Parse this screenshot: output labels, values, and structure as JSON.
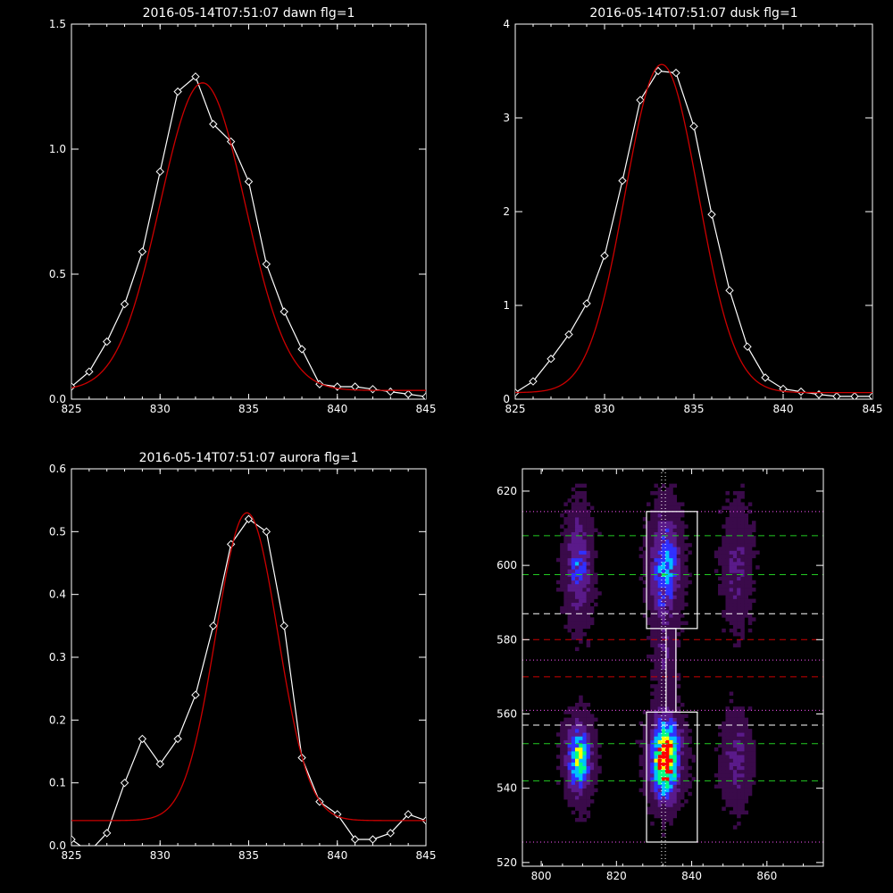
{
  "chart_data": [
    {
      "type": "line",
      "title": "2016-05-14T07:51:07 dawn flg=1",
      "xlim": [
        825,
        845
      ],
      "ylim": [
        0,
        1.5
      ],
      "x_ticks": [
        "825",
        "830",
        "835",
        "840",
        "845"
      ],
      "y_ticks": [
        "0.0",
        "0.5",
        "1.0",
        "1.5"
      ],
      "series": [
        {
          "kind": "observed",
          "color": "#ffffff",
          "x": [
            825,
            826,
            827,
            828,
            829,
            830,
            831,
            832,
            833,
            834,
            835,
            836,
            837,
            838,
            839,
            840,
            841,
            842,
            843,
            844,
            845
          ],
          "y": [
            0.05,
            0.11,
            0.23,
            0.38,
            0.59,
            0.91,
            1.23,
            1.29,
            1.1,
            1.03,
            0.87,
            0.54,
            0.35,
            0.2,
            0.06,
            0.05,
            0.05,
            0.04,
            0.03,
            0.02,
            0.01
          ]
        },
        {
          "kind": "fit",
          "color": "#cc0000",
          "fit": {
            "amp": 1.23,
            "mu": 832.4,
            "sigma": 2.4,
            "base": 0.035
          }
        }
      ]
    },
    {
      "type": "line",
      "title": "2016-05-14T07:51:07 dusk flg=1",
      "xlim": [
        825,
        845
      ],
      "ylim": [
        0,
        4
      ],
      "x_ticks": [
        "825",
        "830",
        "835",
        "840",
        "845"
      ],
      "y_ticks": [
        "0",
        "1",
        "2",
        "3",
        "4"
      ],
      "series": [
        {
          "kind": "observed",
          "color": "#ffffff",
          "x": [
            825,
            826,
            827,
            828,
            829,
            830,
            831,
            832,
            833,
            834,
            835,
            836,
            837,
            838,
            839,
            840,
            841,
            842,
            843,
            844,
            845
          ],
          "y": [
            0.07,
            0.19,
            0.43,
            0.69,
            1.02,
            1.53,
            2.33,
            3.19,
            3.5,
            3.48,
            2.91,
            1.97,
            1.16,
            0.56,
            0.23,
            0.11,
            0.08,
            0.05,
            0.03,
            0.03,
            0.03
          ]
        },
        {
          "kind": "fit",
          "color": "#cc0000",
          "fit": {
            "amp": 3.5,
            "mu": 833.2,
            "sigma": 2.05,
            "base": 0.07
          }
        }
      ]
    },
    {
      "type": "line",
      "title": "2016-05-14T07:51:07 aurora flg=1",
      "xlim": [
        825,
        845
      ],
      "ylim": [
        0,
        0.6
      ],
      "x_ticks": [
        "825",
        "830",
        "835",
        "840",
        "845"
      ],
      "y_ticks": [
        "0.0",
        "0.1",
        "0.2",
        "0.3",
        "0.4",
        "0.5",
        "0.6"
      ],
      "series": [
        {
          "kind": "observed",
          "color": "#ffffff",
          "x": [
            825,
            826,
            827,
            828,
            829,
            830,
            831,
            832,
            833,
            834,
            835,
            836,
            837,
            838,
            839,
            840,
            841,
            842,
            843,
            844,
            845
          ],
          "y": [
            0.01,
            -0.01,
            0.02,
            0.1,
            0.17,
            0.13,
            0.17,
            0.24,
            0.35,
            0.48,
            0.52,
            0.5,
            0.35,
            0.14,
            0.07,
            0.05,
            0.01,
            0.01,
            0.02,
            0.05,
            0.04
          ]
        },
        {
          "kind": "fit",
          "color": "#cc0000",
          "fit": {
            "amp": 0.49,
            "mu": 834.9,
            "sigma": 1.75,
            "base": 0.04
          }
        }
      ]
    },
    {
      "type": "heatmap",
      "title": "",
      "xlim": [
        795,
        875
      ],
      "ylim": [
        519,
        626
      ],
      "x_ticks": [
        "800",
        "820",
        "840",
        "860"
      ],
      "y_ticks": [
        "520",
        "540",
        "560",
        "580",
        "600",
        "620"
      ],
      "colormap": [
        "#000000",
        "#3a0a4a",
        "#5a1a8a",
        "#3030ff",
        "#00c0ff",
        "#00ff80",
        "#ffff00",
        "#ff0000"
      ],
      "blobs": [
        {
          "x": 833,
          "y": 548,
          "sx": 2.6,
          "sy": 7,
          "amp": 1.0
        },
        {
          "x": 833,
          "y": 600,
          "sx": 2.6,
          "sy": 9,
          "amp": 0.5
        },
        {
          "x": 810,
          "y": 548,
          "sx": 2.2,
          "sy": 6,
          "amp": 0.72
        },
        {
          "x": 810,
          "y": 600,
          "sx": 2.2,
          "sy": 9,
          "amp": 0.38
        },
        {
          "x": 852,
          "y": 548,
          "sx": 2.5,
          "sy": 8,
          "amp": 0.22
        },
        {
          "x": 852,
          "y": 600,
          "sx": 2.5,
          "sy": 10,
          "amp": 0.2
        },
        {
          "x": 833,
          "y": 575,
          "sx": 2.0,
          "sy": 8,
          "amp": 0.15
        }
      ],
      "hlines": [
        {
          "y": 614.5,
          "color": "#ff55ff",
          "style": "dotted"
        },
        {
          "y": 608,
          "color": "#22cc22",
          "style": "dashed"
        },
        {
          "y": 597.5,
          "color": "#22cc22",
          "style": "dashed"
        },
        {
          "y": 587,
          "color": "#ffffff",
          "style": "dashed"
        },
        {
          "y": 580,
          "color": "#cc0000",
          "style": "dashed"
        },
        {
          "y": 574.5,
          "color": "#ff55ff",
          "style": "dotted"
        },
        {
          "y": 570,
          "color": "#cc0000",
          "style": "dashed"
        },
        {
          "y": 561,
          "color": "#ff55ff",
          "style": "dotted"
        },
        {
          "y": 557,
          "color": "#ffffff",
          "style": "dashed"
        },
        {
          "y": 552,
          "color": "#22cc22",
          "style": "dashed"
        },
        {
          "y": 542,
          "color": "#22cc22",
          "style": "dashed"
        },
        {
          "y": 525.5,
          "color": "#ff55ff",
          "style": "dotted"
        }
      ],
      "vlines": [
        {
          "x": 832,
          "color": "#ffffff",
          "style": "dotted"
        },
        {
          "x": 833,
          "color": "#ffffff",
          "style": "dotted"
        }
      ],
      "boxes": [
        {
          "x0": 828,
          "x1": 841.5,
          "y0": 583,
          "y1": 614.5
        },
        {
          "x0": 828,
          "x1": 841.5,
          "y0": 525.5,
          "y1": 560.5
        },
        {
          "x0": 833.2,
          "x1": 835.8,
          "y0": 560.5,
          "y1": 583
        }
      ],
      "markers": [
        {
          "x": 832.5,
          "y": 548.5,
          "color": "#ff0000"
        }
      ]
    }
  ]
}
